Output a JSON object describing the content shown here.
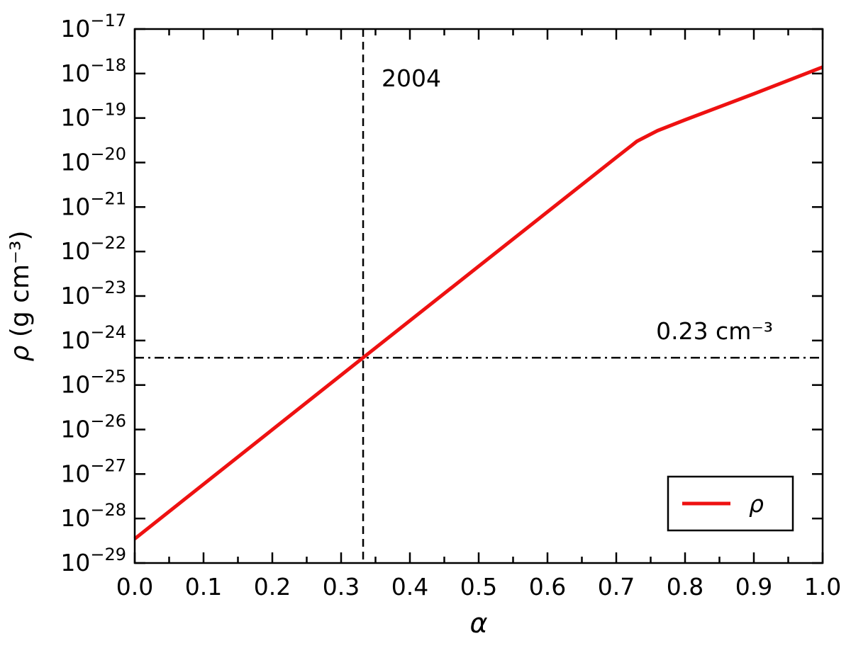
{
  "chart_data": {
    "type": "line",
    "title": "",
    "xlabel": "α",
    "ylabel_symbol": "ρ",
    "ylabel_units": " (g cm⁻³)",
    "xlim": [
      0.0,
      1.0
    ],
    "x_major_ticks": [
      0.0,
      0.1,
      0.2,
      0.3,
      0.4,
      0.5,
      0.6,
      0.7,
      0.8,
      0.9,
      1.0
    ],
    "x_minor_step": 0.05,
    "ylog_range": [
      -29,
      -17
    ],
    "y_tick_exponents": [
      -17,
      -18,
      -19,
      -20,
      -21,
      -22,
      -23,
      -24,
      -25,
      -26,
      -27,
      -28,
      -29
    ],
    "grid": false,
    "axis_color": "#000000",
    "series": [
      {
        "name": "ρ",
        "color": "#ee1111",
        "x": [
          0.0,
          0.33,
          0.7,
          0.73,
          0.76,
          0.8,
          0.9,
          1.0
        ],
        "y": [
          3.5e-29,
          3.9e-25,
          1.3e-20,
          3e-20,
          5.2e-20,
          9.1e-20,
          3.5e-19,
          1.4e-18
        ]
      }
    ],
    "annotations": {
      "vline": {
        "x": 0.332,
        "label": "2004",
        "style": "dashed",
        "color": "#000000"
      },
      "hline": {
        "y": 4.1e-25,
        "label": "0.23 cm⁻³",
        "style": "dashdot",
        "color": "#000000"
      }
    },
    "legend": {
      "position": "lower right",
      "entries": [
        {
          "label": "ρ",
          "color": "#ee1111"
        }
      ]
    }
  }
}
